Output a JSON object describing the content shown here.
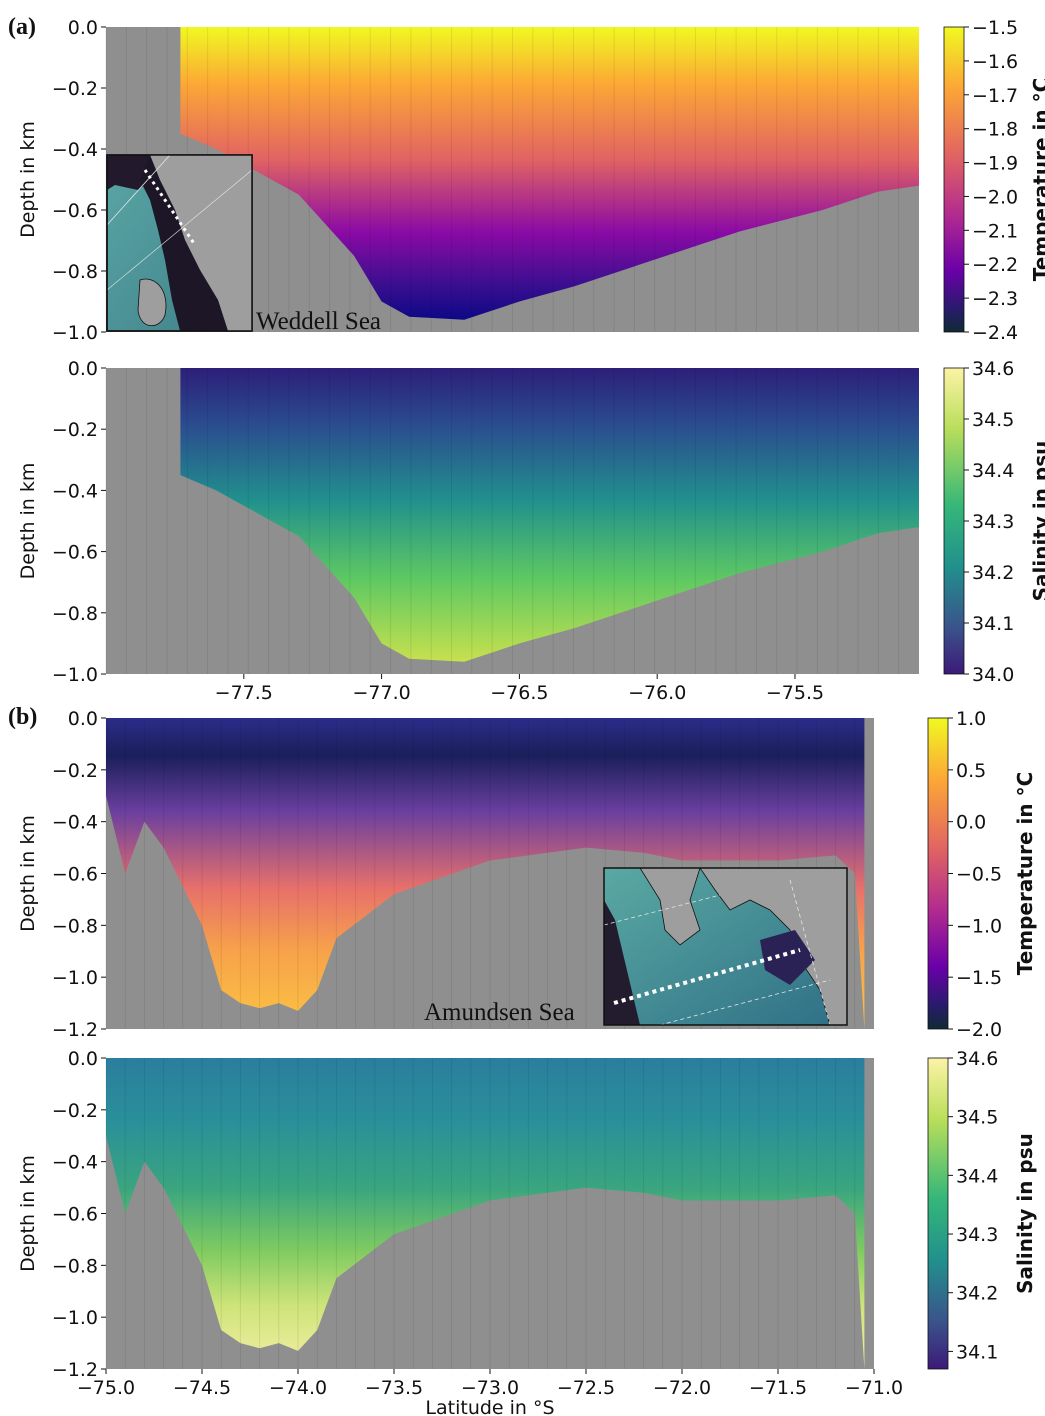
{
  "panels": [
    {
      "tag": "(a)",
      "inset_label": "Weddell Sea"
    },
    {
      "tag": "(b)",
      "inset_label": "Amundsen Sea"
    }
  ],
  "chart_data": [
    {
      "type": "heatmap",
      "id": "a-temp",
      "ylabel": "Depth in km",
      "colorbar_label": "Temperature in °C",
      "colormap": "plasma",
      "ylim": [
        -1.0,
        0.0
      ],
      "yticks": [
        "0.0",
        "−0.2",
        "−0.4",
        "−0.6",
        "−0.8",
        "−1.0"
      ],
      "xlim": [
        -78.0,
        -75.05
      ],
      "xticks": [],
      "colorbar_ticks": [
        "−1.5",
        "−1.6",
        "−1.7",
        "−1.8",
        "−1.9",
        "−2.0",
        "−2.1",
        "−2.2",
        "−2.3",
        "−2.4"
      ],
      "colorbar_range": [
        -2.4,
        -1.5
      ],
      "bathymetry": {
        "lat": [
          -77.73,
          -77.6,
          -77.5,
          -77.3,
          -77.1,
          -77.0,
          -76.9,
          -76.7,
          -76.5,
          -76.3,
          -76.0,
          -75.7,
          -75.4,
          -75.2,
          -75.05
        ],
        "depth": [
          -0.35,
          -0.4,
          -0.45,
          -0.55,
          -0.75,
          -0.9,
          -0.95,
          -0.96,
          -0.9,
          -0.85,
          -0.76,
          -0.67,
          -0.6,
          -0.54,
          -0.52
        ]
      }
    },
    {
      "type": "heatmap",
      "id": "a-sal",
      "ylabel": "Depth in km",
      "colorbar_label": "Salinity in psu",
      "colormap": "viridis",
      "ylim": [
        -1.0,
        0.0
      ],
      "yticks": [
        "0.0",
        "−0.2",
        "−0.4",
        "−0.6",
        "−0.8",
        "−1.0"
      ],
      "xlim": [
        -78.0,
        -75.05
      ],
      "xticks": [
        "−77.5",
        "−77.0",
        "−76.5",
        "−76.0",
        "−75.5"
      ],
      "colorbar_ticks": [
        "34.6",
        "34.5",
        "34.4",
        "34.3",
        "34.2",
        "34.1",
        "34.0"
      ],
      "colorbar_range": [
        34.0,
        34.6
      ],
      "bathymetry": {
        "lat": [
          -77.73,
          -77.6,
          -77.5,
          -77.3,
          -77.1,
          -77.0,
          -76.9,
          -76.7,
          -76.5,
          -76.3,
          -76.0,
          -75.7,
          -75.4,
          -75.2,
          -75.05
        ],
        "depth": [
          -0.35,
          -0.4,
          -0.45,
          -0.55,
          -0.75,
          -0.9,
          -0.95,
          -0.96,
          -0.9,
          -0.85,
          -0.76,
          -0.67,
          -0.6,
          -0.54,
          -0.52
        ]
      }
    },
    {
      "type": "heatmap",
      "id": "b-temp",
      "ylabel": "Depth in km",
      "colorbar_label": "Temperature in °C",
      "colormap": "plasma",
      "ylim": [
        -1.2,
        0.0
      ],
      "yticks": [
        "0.0",
        "−0.2",
        "−0.4",
        "−0.6",
        "−0.8",
        "−1.0",
        "−1.2"
      ],
      "xlim": [
        -75.0,
        -71.0
      ],
      "xticks": [],
      "colorbar_ticks": [
        "1.0",
        "0.5",
        "0.0",
        "−0.5",
        "−1.0",
        "−1.5",
        "−2.0"
      ],
      "colorbar_range": [
        -2.0,
        1.0
      ],
      "bathymetry": {
        "lat": [
          -75.0,
          -74.9,
          -74.8,
          -74.7,
          -74.5,
          -74.4,
          -74.3,
          -74.2,
          -74.1,
          -74.0,
          -73.9,
          -73.8,
          -73.5,
          -73.0,
          -72.5,
          -72.2,
          -72.0,
          -71.5,
          -71.2,
          -71.1,
          -71.05
        ],
        "depth": [
          -0.3,
          -0.6,
          -0.4,
          -0.5,
          -0.8,
          -1.05,
          -1.1,
          -1.12,
          -1.1,
          -1.13,
          -1.05,
          -0.85,
          -0.68,
          -0.55,
          -0.5,
          -0.52,
          -0.55,
          -0.55,
          -0.53,
          -0.6,
          -1.2
        ]
      }
    },
    {
      "type": "heatmap",
      "id": "b-sal",
      "ylabel": "Depth in km",
      "xlabel": "Latitude in °S",
      "colorbar_label": "Salinity in psu",
      "colormap": "viridis",
      "ylim": [
        -1.2,
        0.0
      ],
      "yticks": [
        "0.0",
        "−0.2",
        "−0.4",
        "−0.6",
        "−0.8",
        "−1.0",
        "−1.2"
      ],
      "xlim": [
        -75.0,
        -71.0
      ],
      "xticks": [
        "−75.0",
        "−74.5",
        "−74.0",
        "−73.5",
        "−73.0",
        "−72.5",
        "−72.0",
        "−71.5",
        "−71.0"
      ],
      "colorbar_ticks": [
        "34.6",
        "34.5",
        "34.4",
        "34.3",
        "34.2",
        "34.1"
      ],
      "colorbar_range": [
        34.07,
        34.6
      ],
      "bathymetry": {
        "lat": [
          -75.0,
          -74.9,
          -74.8,
          -74.7,
          -74.5,
          -74.4,
          -74.3,
          -74.2,
          -74.1,
          -74.0,
          -73.9,
          -73.8,
          -73.5,
          -73.0,
          -72.5,
          -72.2,
          -72.0,
          -71.5,
          -71.2,
          -71.1,
          -71.05
        ],
        "depth": [
          -0.3,
          -0.6,
          -0.4,
          -0.5,
          -0.8,
          -1.05,
          -1.1,
          -1.12,
          -1.1,
          -1.13,
          -1.05,
          -0.85,
          -0.68,
          -0.55,
          -0.5,
          -0.52,
          -0.55,
          -0.55,
          -0.53,
          -0.6,
          -1.2
        ]
      }
    }
  ]
}
